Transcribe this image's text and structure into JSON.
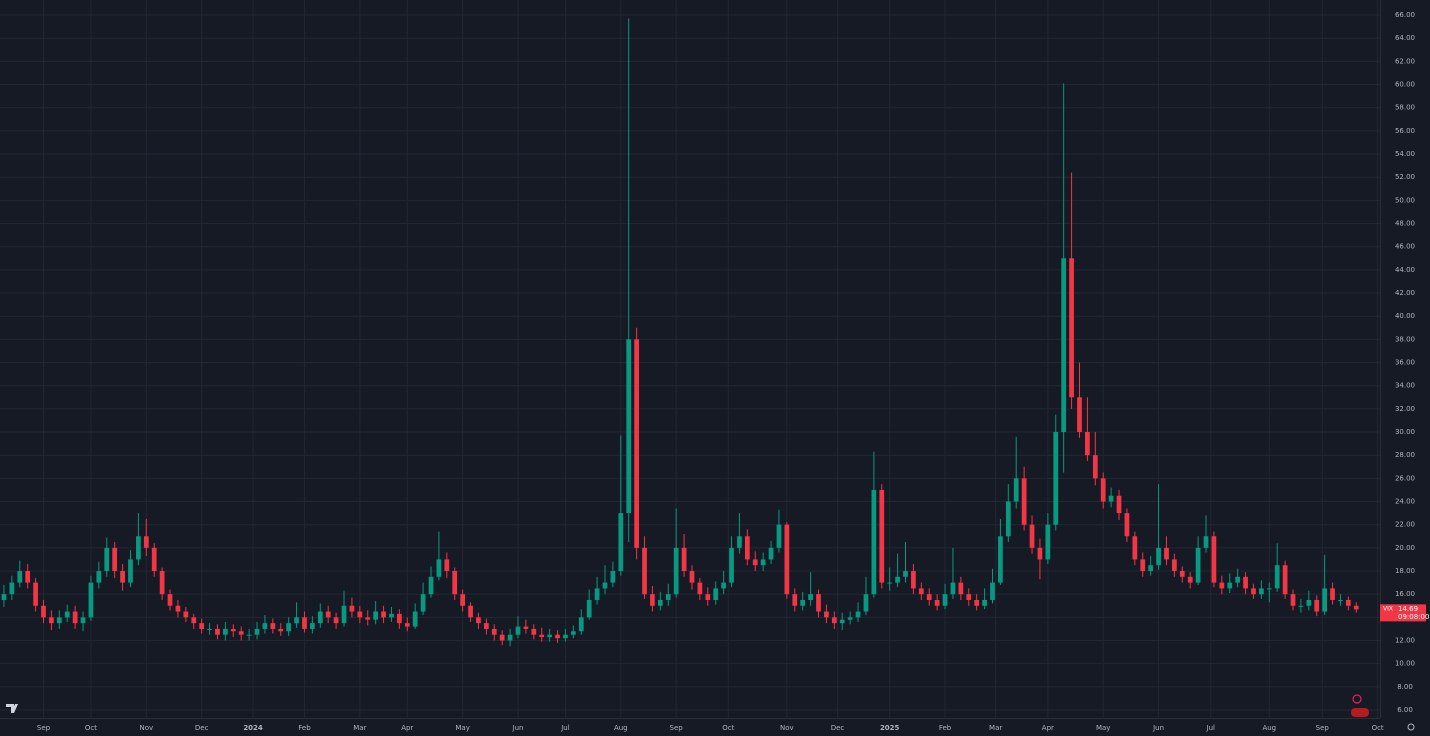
{
  "chart_data": {
    "type": "candlestick",
    "xlim": [
      -0.5,
      174
    ],
    "ylim": [
      5.31,
      67.3
    ],
    "xticks": [
      {
        "value": 5,
        "label": "Sep"
      },
      {
        "value": 11,
        "label": "Oct"
      },
      {
        "value": 18,
        "label": "Nov"
      },
      {
        "value": 25,
        "label": "Dec"
      },
      {
        "value": 31.5,
        "label": "2024"
      },
      {
        "value": 38,
        "label": "Feb"
      },
      {
        "value": 45,
        "label": "Mar"
      },
      {
        "value": 51,
        "label": "Apr"
      },
      {
        "value": 58,
        "label": "May"
      },
      {
        "value": 65,
        "label": "Jun"
      },
      {
        "value": 71,
        "label": "Jul"
      },
      {
        "value": 78,
        "label": "Aug"
      },
      {
        "value": 85,
        "label": "Sep"
      },
      {
        "value": 91.6,
        "label": "Oct"
      },
      {
        "value": 99,
        "label": "Nov"
      },
      {
        "value": 105.4,
        "label": "Dec"
      },
      {
        "value": 112,
        "label": "2025"
      },
      {
        "value": 119,
        "label": "Feb"
      },
      {
        "value": 125.4,
        "label": "Mar"
      },
      {
        "value": 132,
        "label": "Apr"
      },
      {
        "value": 139,
        "label": "May"
      },
      {
        "value": 146,
        "label": "Jun"
      },
      {
        "value": 152.6,
        "label": "Jul"
      },
      {
        "value": 160,
        "label": "Aug"
      },
      {
        "value": 166.7,
        "label": "Sep"
      },
      {
        "value": 173.7,
        "label": "Oct"
      }
    ],
    "yticks": [
      {
        "value": 6,
        "label": "6.00"
      },
      {
        "value": 8,
        "label": "8.00"
      },
      {
        "value": 10,
        "label": "10.00"
      },
      {
        "value": 12,
        "label": "12.00"
      },
      {
        "value": 14,
        "label": "14.00"
      },
      {
        "value": 16,
        "label": "16.00"
      },
      {
        "value": 18,
        "label": "18.00"
      },
      {
        "value": 20,
        "label": "20.00"
      },
      {
        "value": 22,
        "label": "22.00"
      },
      {
        "value": 24,
        "label": "24.00"
      },
      {
        "value": 26,
        "label": "26.00"
      },
      {
        "value": 28,
        "label": "28.00"
      },
      {
        "value": 30,
        "label": "30.00"
      },
      {
        "value": 32,
        "label": "32.00"
      },
      {
        "value": 34,
        "label": "34.00"
      },
      {
        "value": 36,
        "label": "36.00"
      },
      {
        "value": 38,
        "label": "38.00"
      },
      {
        "value": 40,
        "label": "40.00"
      },
      {
        "value": 42,
        "label": "42.00"
      },
      {
        "value": 44,
        "label": "44.00"
      },
      {
        "value": 46,
        "label": "46.00"
      },
      {
        "value": 48,
        "label": "48.00"
      },
      {
        "value": 50,
        "label": "50.00"
      },
      {
        "value": 52,
        "label": "52.00"
      },
      {
        "value": 54,
        "label": "54.00"
      },
      {
        "value": 56,
        "label": "56.00"
      },
      {
        "value": 58,
        "label": "58.00"
      },
      {
        "value": 60,
        "label": "60.00"
      },
      {
        "value": 62,
        "label": "62.00"
      },
      {
        "value": 64,
        "label": "64.00"
      },
      {
        "value": 66,
        "label": "66.00"
      }
    ],
    "grid": true,
    "up_color": "#089981",
    "down_color": "#f23645",
    "symbol": "VIX",
    "countdown": "09:08:00",
    "series": [
      {
        "name": "VIX",
        "open": [
          15.5,
          16,
          17,
          18,
          17,
          15,
          14,
          13.5,
          14,
          14.5,
          13.5,
          14,
          17,
          18,
          20,
          18,
          17,
          19,
          21,
          20,
          18,
          16,
          15,
          14.5,
          14,
          13.5,
          13,
          13,
          12.5,
          13,
          12.8,
          12.5,
          12.5,
          13,
          13.5,
          13,
          12.8,
          13.5,
          14,
          13,
          13.5,
          14.5,
          14,
          13.5,
          15,
          14.5,
          14,
          13.8,
          14.5,
          14,
          14.3,
          13.5,
          13.2,
          14.5,
          16,
          17.5,
          19,
          18,
          16,
          15,
          14,
          13.5,
          13,
          12.5,
          12,
          12.5,
          13.2,
          13,
          12.5,
          12.3,
          12.5,
          12.2,
          12.5,
          12.8,
          14,
          15.5,
          16.5,
          17,
          18,
          23,
          38,
          20,
          16,
          15,
          15.5,
          16,
          20,
          18,
          17,
          16,
          15.5,
          16.5,
          17,
          20,
          21,
          19,
          18.5,
          19,
          20,
          22,
          16,
          15,
          15.5,
          16,
          14.5,
          14,
          13.5,
          13.8,
          14,
          14.5,
          16,
          25,
          17,
          17,
          17.5,
          18,
          16.5,
          16,
          15.5,
          15,
          16,
          17,
          16,
          15.5,
          15,
          15.5,
          17,
          21,
          24,
          26,
          22,
          20,
          19,
          22,
          30,
          45,
          33,
          30,
          28,
          26,
          24,
          24.5,
          23,
          21,
          19,
          18,
          18.5,
          20,
          19,
          18,
          17.5,
          17,
          20,
          21,
          17,
          16.5,
          17,
          17.5,
          16.5,
          16,
          16.5,
          16.5,
          18.5,
          16,
          15,
          15,
          15.5,
          14.5,
          16.5,
          15.5,
          15.5,
          15
        ],
        "high": [
          16.8,
          17.6,
          18.9,
          18.6,
          17.4,
          15.5,
          14.6,
          14.6,
          15.1,
          15,
          14.5,
          17.6,
          18.8,
          20.9,
          20.5,
          18.6,
          19.8,
          23,
          22.5,
          20.4,
          18.3,
          16.4,
          15.5,
          14.9,
          14.3,
          13.9,
          13.5,
          13.4,
          13.6,
          13.4,
          13.2,
          13,
          13.6,
          14.2,
          13.9,
          13.5,
          14,
          15.3,
          14.5,
          14.1,
          15.2,
          15,
          14.4,
          16.3,
          15.7,
          15,
          14.6,
          15.4,
          15,
          14.9,
          14.7,
          14,
          15.2,
          17,
          18.4,
          21.4,
          19.6,
          18.3,
          16.4,
          15.3,
          14.4,
          13.9,
          13.4,
          12.9,
          13,
          14.1,
          13.8,
          13.4,
          13.1,
          13,
          12.9,
          13,
          13.3,
          14.7,
          16.4,
          17.5,
          18.5,
          18.8,
          29.7,
          65.7,
          39,
          21,
          16.7,
          16.2,
          16.9,
          23.4,
          21.2,
          18.5,
          17.4,
          16.6,
          17.1,
          18,
          21,
          23,
          21.6,
          19.7,
          19.6,
          20.6,
          23.3,
          22.2,
          16.5,
          16.2,
          17.9,
          16.4,
          15.1,
          14.5,
          14.4,
          14.5,
          15.3,
          17.5,
          28.3,
          25.5,
          18.3,
          19.5,
          20.5,
          18.6,
          17,
          16.5,
          16,
          16.9,
          20,
          17.5,
          16.5,
          16,
          16.5,
          18.2,
          22.5,
          25.5,
          29.6,
          27,
          22.8,
          20.8,
          23,
          31.5,
          60.1,
          52.4,
          36,
          33,
          30,
          26.5,
          25.2,
          25,
          23.4,
          21.4,
          19.6,
          19.3,
          25.5,
          21,
          19.5,
          18.4,
          17.9,
          21,
          22.8,
          21.4,
          17.6,
          17.8,
          18.2,
          17.9,
          16.9,
          17.2,
          17,
          20.4,
          18.9,
          16.4,
          15.6,
          16.3,
          15.9,
          19.4,
          17,
          16,
          15.8,
          15.3
        ],
        "low": [
          14.9,
          15.5,
          16.6,
          16.5,
          14.5,
          13.5,
          12.9,
          13,
          13.6,
          13,
          12.8,
          13.7,
          16.5,
          17.5,
          17.4,
          16.3,
          16.6,
          18.5,
          19.3,
          17.5,
          15.5,
          14.6,
          14,
          13.6,
          13,
          12.6,
          12.5,
          12.1,
          12,
          12.3,
          12,
          12,
          12.1,
          12.6,
          12.6,
          12.4,
          12.4,
          13.1,
          12.7,
          12.6,
          13.1,
          13.5,
          13,
          13.2,
          14,
          13.5,
          13.3,
          13.4,
          13.5,
          13.6,
          13,
          12.8,
          13,
          14.2,
          15.7,
          17.2,
          17.4,
          15.5,
          14.5,
          13.6,
          13,
          12.5,
          12,
          11.6,
          11.5,
          12.2,
          12.6,
          12.1,
          11.9,
          11.9,
          11.8,
          11.9,
          12.2,
          12.5,
          13.8,
          15.1,
          16,
          16.6,
          17.6,
          20.5,
          19,
          15.6,
          14.5,
          14.6,
          15,
          15.7,
          17.5,
          16.4,
          15.5,
          15,
          15.1,
          16,
          16.6,
          19.5,
          18.5,
          18,
          18,
          18.6,
          19.6,
          15.6,
          14.5,
          14.6,
          15,
          14,
          13.5,
          13,
          12.9,
          13.4,
          13.6,
          14.2,
          15.7,
          16.5,
          16.3,
          16.6,
          17,
          16,
          15.5,
          15,
          14.6,
          14.7,
          15.6,
          15.5,
          15,
          14.6,
          14.7,
          15.2,
          16.8,
          20.5,
          23.4,
          21.5,
          19.5,
          17.3,
          18.6,
          21.5,
          26.5,
          32,
          29.5,
          27.5,
          25.4,
          23.4,
          23.5,
          22.4,
          20.5,
          18.5,
          17.5,
          17.6,
          18.1,
          18.5,
          17.5,
          17,
          16.5,
          16.8,
          19.6,
          16.6,
          16,
          16.1,
          16.6,
          16,
          15.6,
          15.6,
          15.3,
          16.2,
          15.6,
          14.6,
          14.4,
          14.6,
          14.1,
          14.2,
          15.1,
          15,
          14.6,
          14.4
        ],
        "close": [
          16,
          17,
          18,
          17,
          15,
          14,
          13.5,
          14,
          14.5,
          13.5,
          14,
          17,
          18,
          20,
          18,
          17,
          19,
          21,
          20,
          18,
          16,
          15,
          14.5,
          14,
          13.5,
          13,
          13,
          12.5,
          13,
          12.8,
          12.5,
          12.5,
          13,
          13.5,
          13,
          12.8,
          13.5,
          14,
          13,
          13.5,
          14.5,
          14,
          13.5,
          15,
          14.5,
          14,
          13.8,
          14.5,
          14,
          14.3,
          13.5,
          13.2,
          14.5,
          16,
          17.5,
          19,
          18,
          16,
          15,
          14,
          13.5,
          13,
          12.5,
          12,
          12.5,
          13.2,
          13,
          12.5,
          12.3,
          12.5,
          12.2,
          12.5,
          12.8,
          14,
          15.5,
          16.5,
          17,
          18,
          23,
          38,
          20,
          16,
          15,
          15.5,
          16,
          20,
          18,
          17,
          16,
          15.5,
          16.5,
          17,
          20,
          21,
          19,
          18.5,
          19,
          20,
          22,
          16,
          15,
          15.5,
          16,
          14.5,
          14,
          13.5,
          13.8,
          14,
          14.5,
          16,
          25,
          17,
          17,
          17.5,
          18,
          16.5,
          16,
          15.5,
          15,
          16,
          17,
          16,
          15.5,
          15,
          15.5,
          17,
          21,
          24,
          26,
          22,
          20,
          19,
          22,
          30,
          45,
          33,
          30,
          28,
          26,
          24,
          24.5,
          23,
          21,
          19,
          18,
          18.5,
          20,
          19,
          18,
          17.5,
          17,
          20,
          21,
          17,
          16.5,
          17,
          17.5,
          16.5,
          16,
          16.5,
          16.5,
          18.5,
          16,
          15,
          15,
          15.5,
          14.5,
          16.5,
          15.5,
          15.5,
          15,
          14.69
        ]
      }
    ]
  }
}
